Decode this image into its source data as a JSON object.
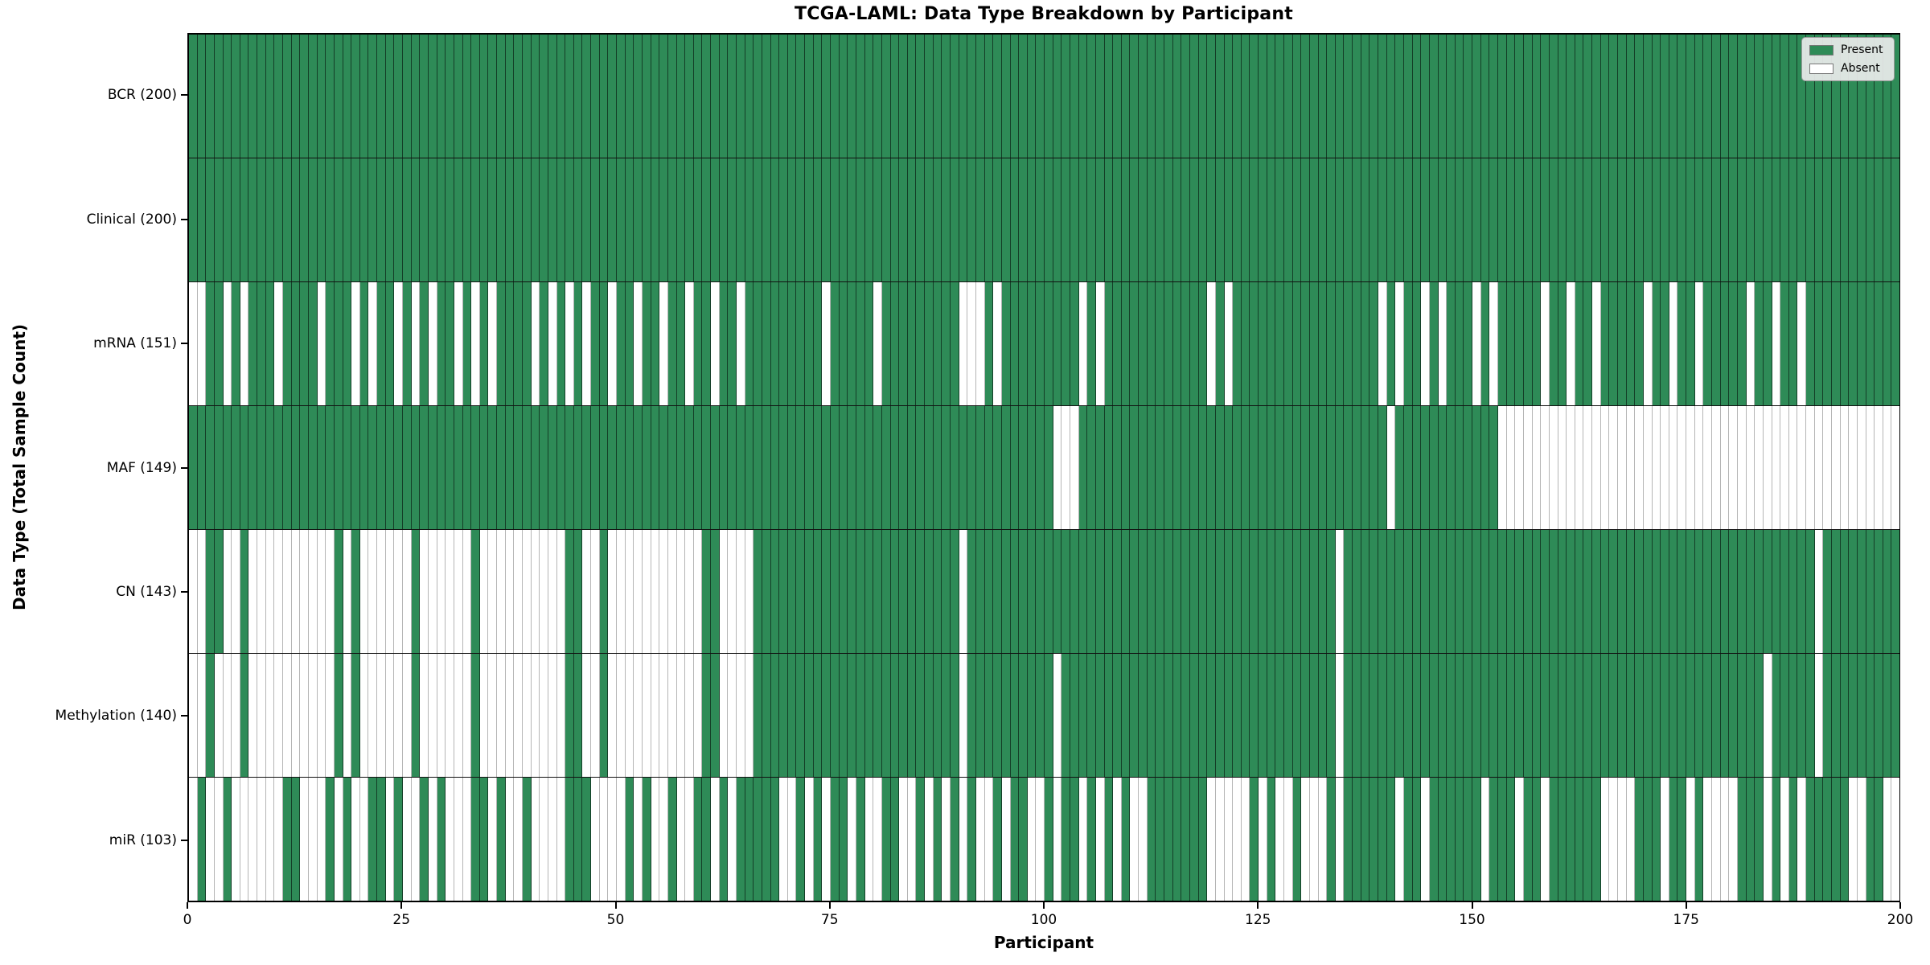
{
  "title": "TCGA-LAML: Data Type Breakdown by Participant",
  "x_axis": {
    "label": "Participant",
    "ticks": [
      0,
      25,
      50,
      75,
      100,
      125,
      150,
      175,
      200
    ]
  },
  "y_axis": {
    "label": "Data Type (Total Sample Count)"
  },
  "legend": {
    "items": [
      {
        "label": "Present",
        "color": "#2e8b57"
      },
      {
        "label": "Absent",
        "color": "#ffffff"
      }
    ]
  },
  "chart_data": {
    "type": "heatmap",
    "title": "TCGA-LAML: Data Type Breakdown by Participant",
    "xlabel": "Participant",
    "ylabel": "Data Type (Total Sample Count)",
    "x_range": [
      0,
      200
    ],
    "n_participants": 200,
    "grid": "cell-borders",
    "legend_position": "upper-right",
    "colors": {
      "present": "#2e8b57",
      "absent": "#ffffff"
    },
    "rows": [
      {
        "name": "BCR",
        "label": "BCR (200)",
        "present_total": 200,
        "absent_participants": []
      },
      {
        "name": "Clinical",
        "label": "Clinical (200)",
        "present_total": 200,
        "absent_participants": []
      },
      {
        "name": "mRNA",
        "label": "mRNA (151)",
        "present_total": 151,
        "absent_participants": [
          0,
          1,
          4,
          6,
          10,
          15,
          19,
          21,
          24,
          26,
          28,
          31,
          33,
          35,
          40,
          42,
          44,
          46,
          49,
          52,
          55,
          58,
          61,
          64,
          74,
          80,
          90,
          91,
          92,
          94,
          104,
          106,
          119,
          121,
          139,
          141,
          144,
          146,
          150,
          152,
          158,
          161,
          164,
          170,
          173,
          176,
          182,
          185,
          188
        ]
      },
      {
        "name": "MAF",
        "label": "MAF (149)",
        "present_total": 149,
        "absent_participants": [
          101,
          102,
          103,
          140,
          153,
          154,
          155,
          156,
          157,
          158,
          159,
          160,
          161,
          162,
          163,
          164,
          165,
          166,
          167,
          168,
          169,
          170,
          171,
          172,
          173,
          174,
          175,
          176,
          177,
          178,
          179,
          180,
          181,
          182,
          183,
          184,
          185,
          186,
          187,
          188,
          189,
          190,
          191,
          192,
          193,
          194,
          195,
          196,
          197,
          198,
          199
        ]
      },
      {
        "name": "CN",
        "label": "CN (143)",
        "present_total": 143,
        "absent_participants": [
          0,
          1,
          4,
          5,
          7,
          8,
          9,
          10,
          11,
          12,
          13,
          14,
          15,
          16,
          18,
          20,
          21,
          22,
          23,
          24,
          25,
          27,
          28,
          29,
          30,
          31,
          32,
          34,
          35,
          36,
          37,
          38,
          39,
          40,
          41,
          42,
          43,
          46,
          47,
          49,
          50,
          51,
          52,
          53,
          54,
          55,
          56,
          57,
          58,
          59,
          62,
          63,
          64,
          65,
          90,
          134,
          190
        ]
      },
      {
        "name": "Methylation",
        "label": "Methylation (140)",
        "present_total": 140,
        "absent_participants": [
          0,
          1,
          3,
          4,
          5,
          7,
          8,
          9,
          10,
          11,
          12,
          13,
          14,
          15,
          16,
          18,
          20,
          21,
          22,
          23,
          24,
          25,
          27,
          28,
          29,
          30,
          31,
          32,
          34,
          35,
          36,
          37,
          38,
          39,
          40,
          41,
          42,
          43,
          46,
          47,
          49,
          50,
          51,
          52,
          53,
          54,
          55,
          56,
          57,
          58,
          59,
          62,
          63,
          64,
          65,
          90,
          101,
          134,
          184,
          190
        ]
      },
      {
        "name": "miR",
        "label": "miR (103)",
        "present_total": 103,
        "absent_participants": [
          0,
          2,
          3,
          5,
          6,
          7,
          8,
          9,
          10,
          13,
          14,
          15,
          17,
          19,
          20,
          23,
          25,
          26,
          28,
          30,
          31,
          32,
          35,
          37,
          38,
          40,
          41,
          42,
          43,
          47,
          48,
          49,
          50,
          52,
          54,
          55,
          57,
          58,
          61,
          63,
          69,
          70,
          72,
          74,
          77,
          79,
          80,
          83,
          84,
          86,
          88,
          90,
          92,
          93,
          95,
          98,
          99,
          101,
          104,
          106,
          108,
          110,
          111,
          119,
          120,
          121,
          122,
          123,
          125,
          127,
          128,
          130,
          131,
          132,
          134,
          141,
          144,
          151,
          155,
          158,
          165,
          166,
          167,
          168,
          172,
          175,
          177,
          178,
          179,
          180,
          184,
          186,
          188,
          194,
          195,
          198,
          199
        ]
      }
    ]
  }
}
